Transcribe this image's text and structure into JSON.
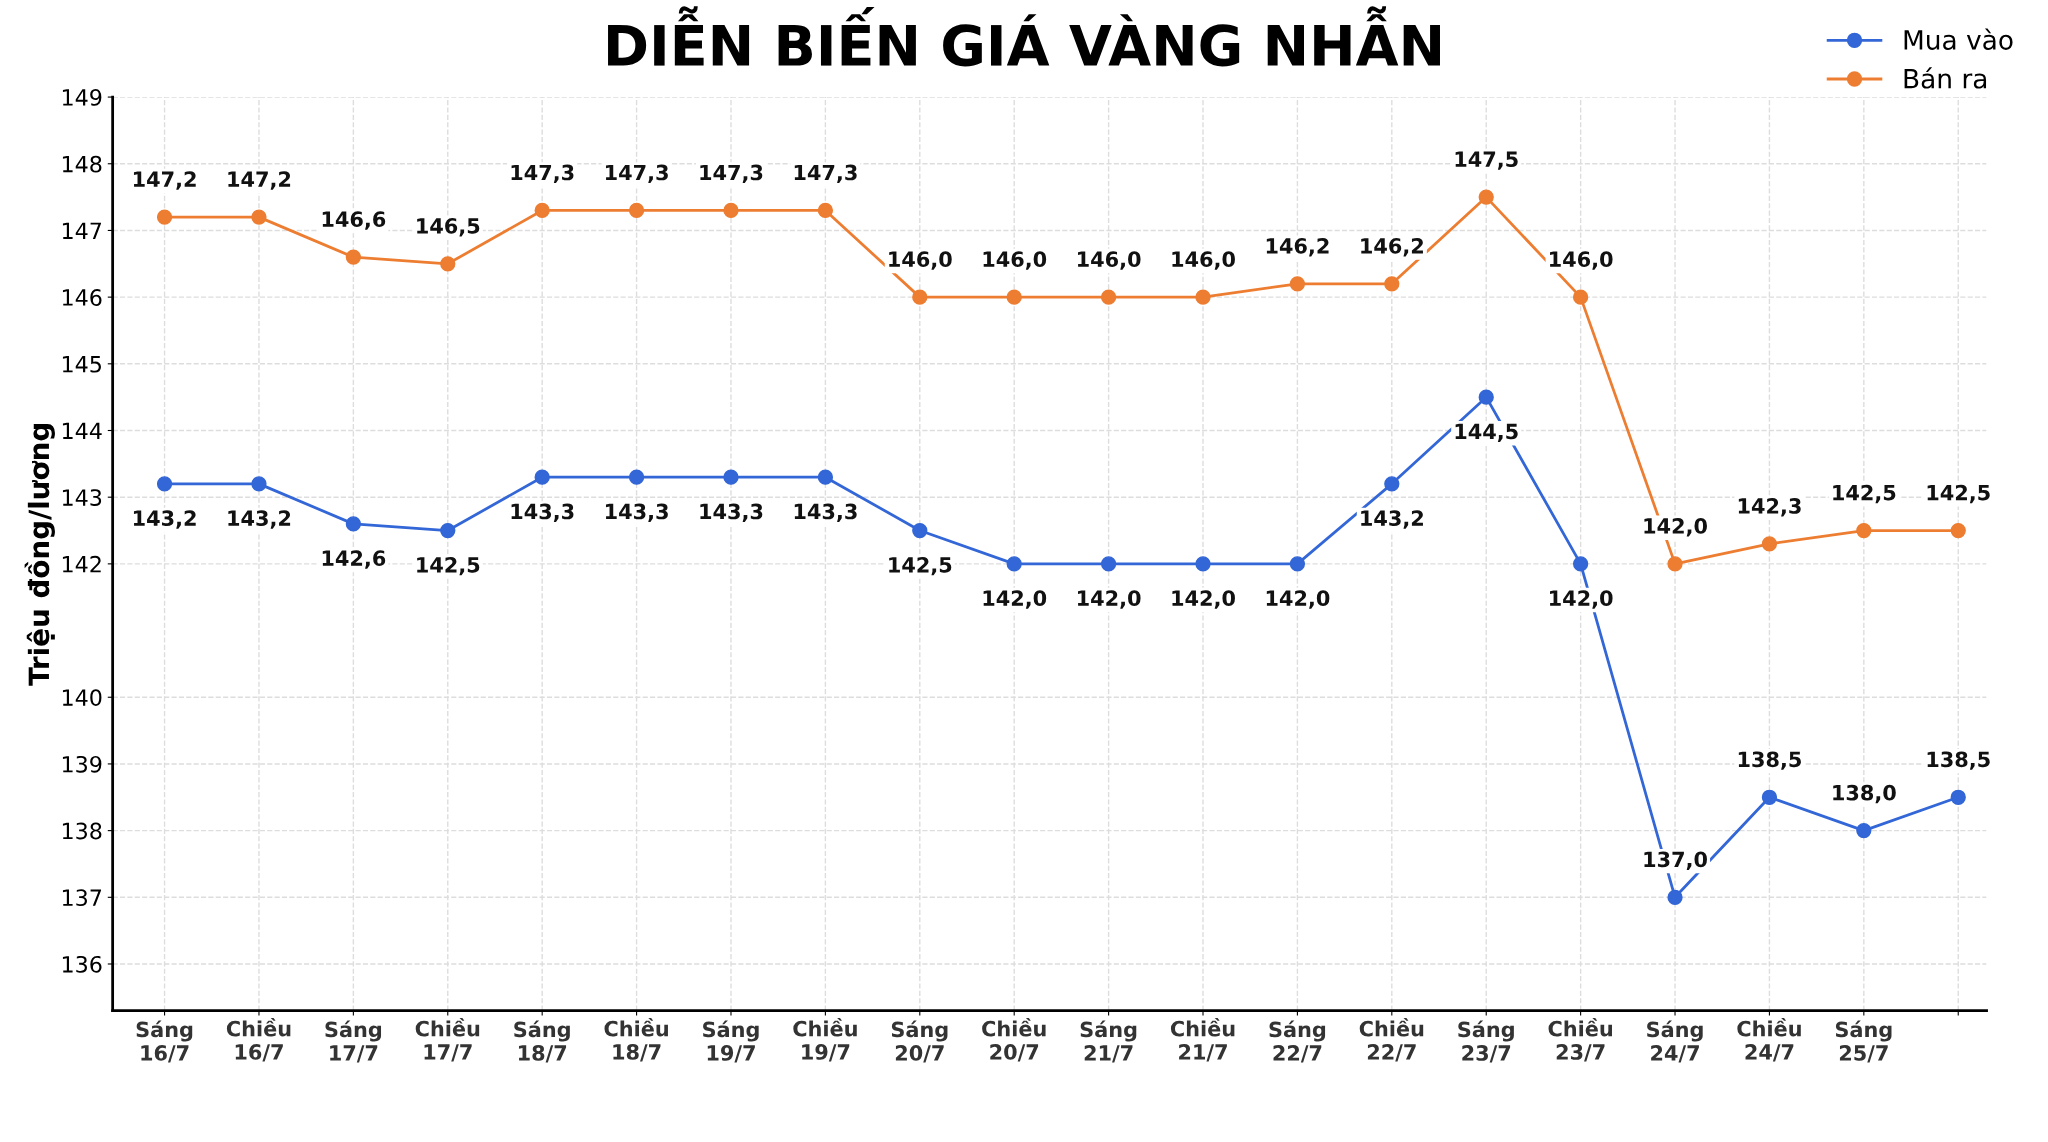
{
  "chart_data": {
    "type": "line",
    "title": "DIỄN BIẾN GIÁ VÀNG NHẪN",
    "ylabel": "Triệu đồng/lương",
    "categories": [
      "Sáng\n16/7",
      "Chiều\n16/7",
      "Sáng\n17/7",
      "Chiều\n17/7",
      "Sáng\n18/7",
      "Chiều\n18/7",
      "Sáng\n19/7",
      "Chiều\n19/7",
      "Sáng\n20/7",
      "Chiều\n20/7",
      "Sáng\n21/7",
      "Chiều\n21/7",
      "Sáng\n22/7",
      "Chiều\n22/7",
      "Sáng\n23/7",
      "Chiều\n23/7",
      "Sáng\n24/7",
      "Chiều\n24/7",
      "Sáng\n25/7",
      null
    ],
    "series": [
      {
        "name": "Mua vào",
        "color": "#3366d6",
        "values": [
          143.2,
          143.2,
          142.6,
          142.5,
          143.3,
          143.3,
          143.3,
          143.3,
          142.5,
          142.0,
          142.0,
          142.0,
          142.0,
          143.2,
          144.5,
          142.0,
          137.0,
          138.5,
          138.0,
          138.5
        ],
        "value_labels": [
          "143,2",
          "143,2",
          "142,6",
          "142,5",
          "143,3",
          "143,3",
          "143,3",
          "143,3",
          "142,5",
          "142,0",
          "142,0",
          "142,0",
          "142,0",
          "143,2",
          "144,5",
          "142,0",
          "137,0",
          "138,5",
          "138,0",
          "138,5"
        ]
      },
      {
        "name": "Bán ra",
        "color": "#ed7d31",
        "values": [
          147.2,
          147.2,
          146.6,
          146.5,
          147.3,
          147.3,
          147.3,
          147.3,
          146.0,
          146.0,
          146.0,
          146.0,
          146.2,
          146.2,
          147.5,
          146.0,
          142.0,
          142.3,
          142.5,
          142.5
        ],
        "value_labels": [
          "147,2",
          "147,2",
          "146,6",
          "146,5",
          "147,3",
          "147,3",
          "147,3",
          "147,3",
          "146,0",
          "146,0",
          "146,0",
          "146,0",
          "146,2",
          "146,2",
          "147,5",
          "146,0",
          "142,0",
          "142,3",
          "142,5",
          "142,5"
        ]
      }
    ],
    "ylim": [
      135.3,
      149
    ],
    "yticks": [
      136,
      137,
      138,
      139,
      140,
      142,
      143,
      144,
      145,
      146,
      147,
      148,
      149
    ],
    "grid": true,
    "legend": "top right",
    "marker": "circle",
    "line_style": "solid"
  }
}
